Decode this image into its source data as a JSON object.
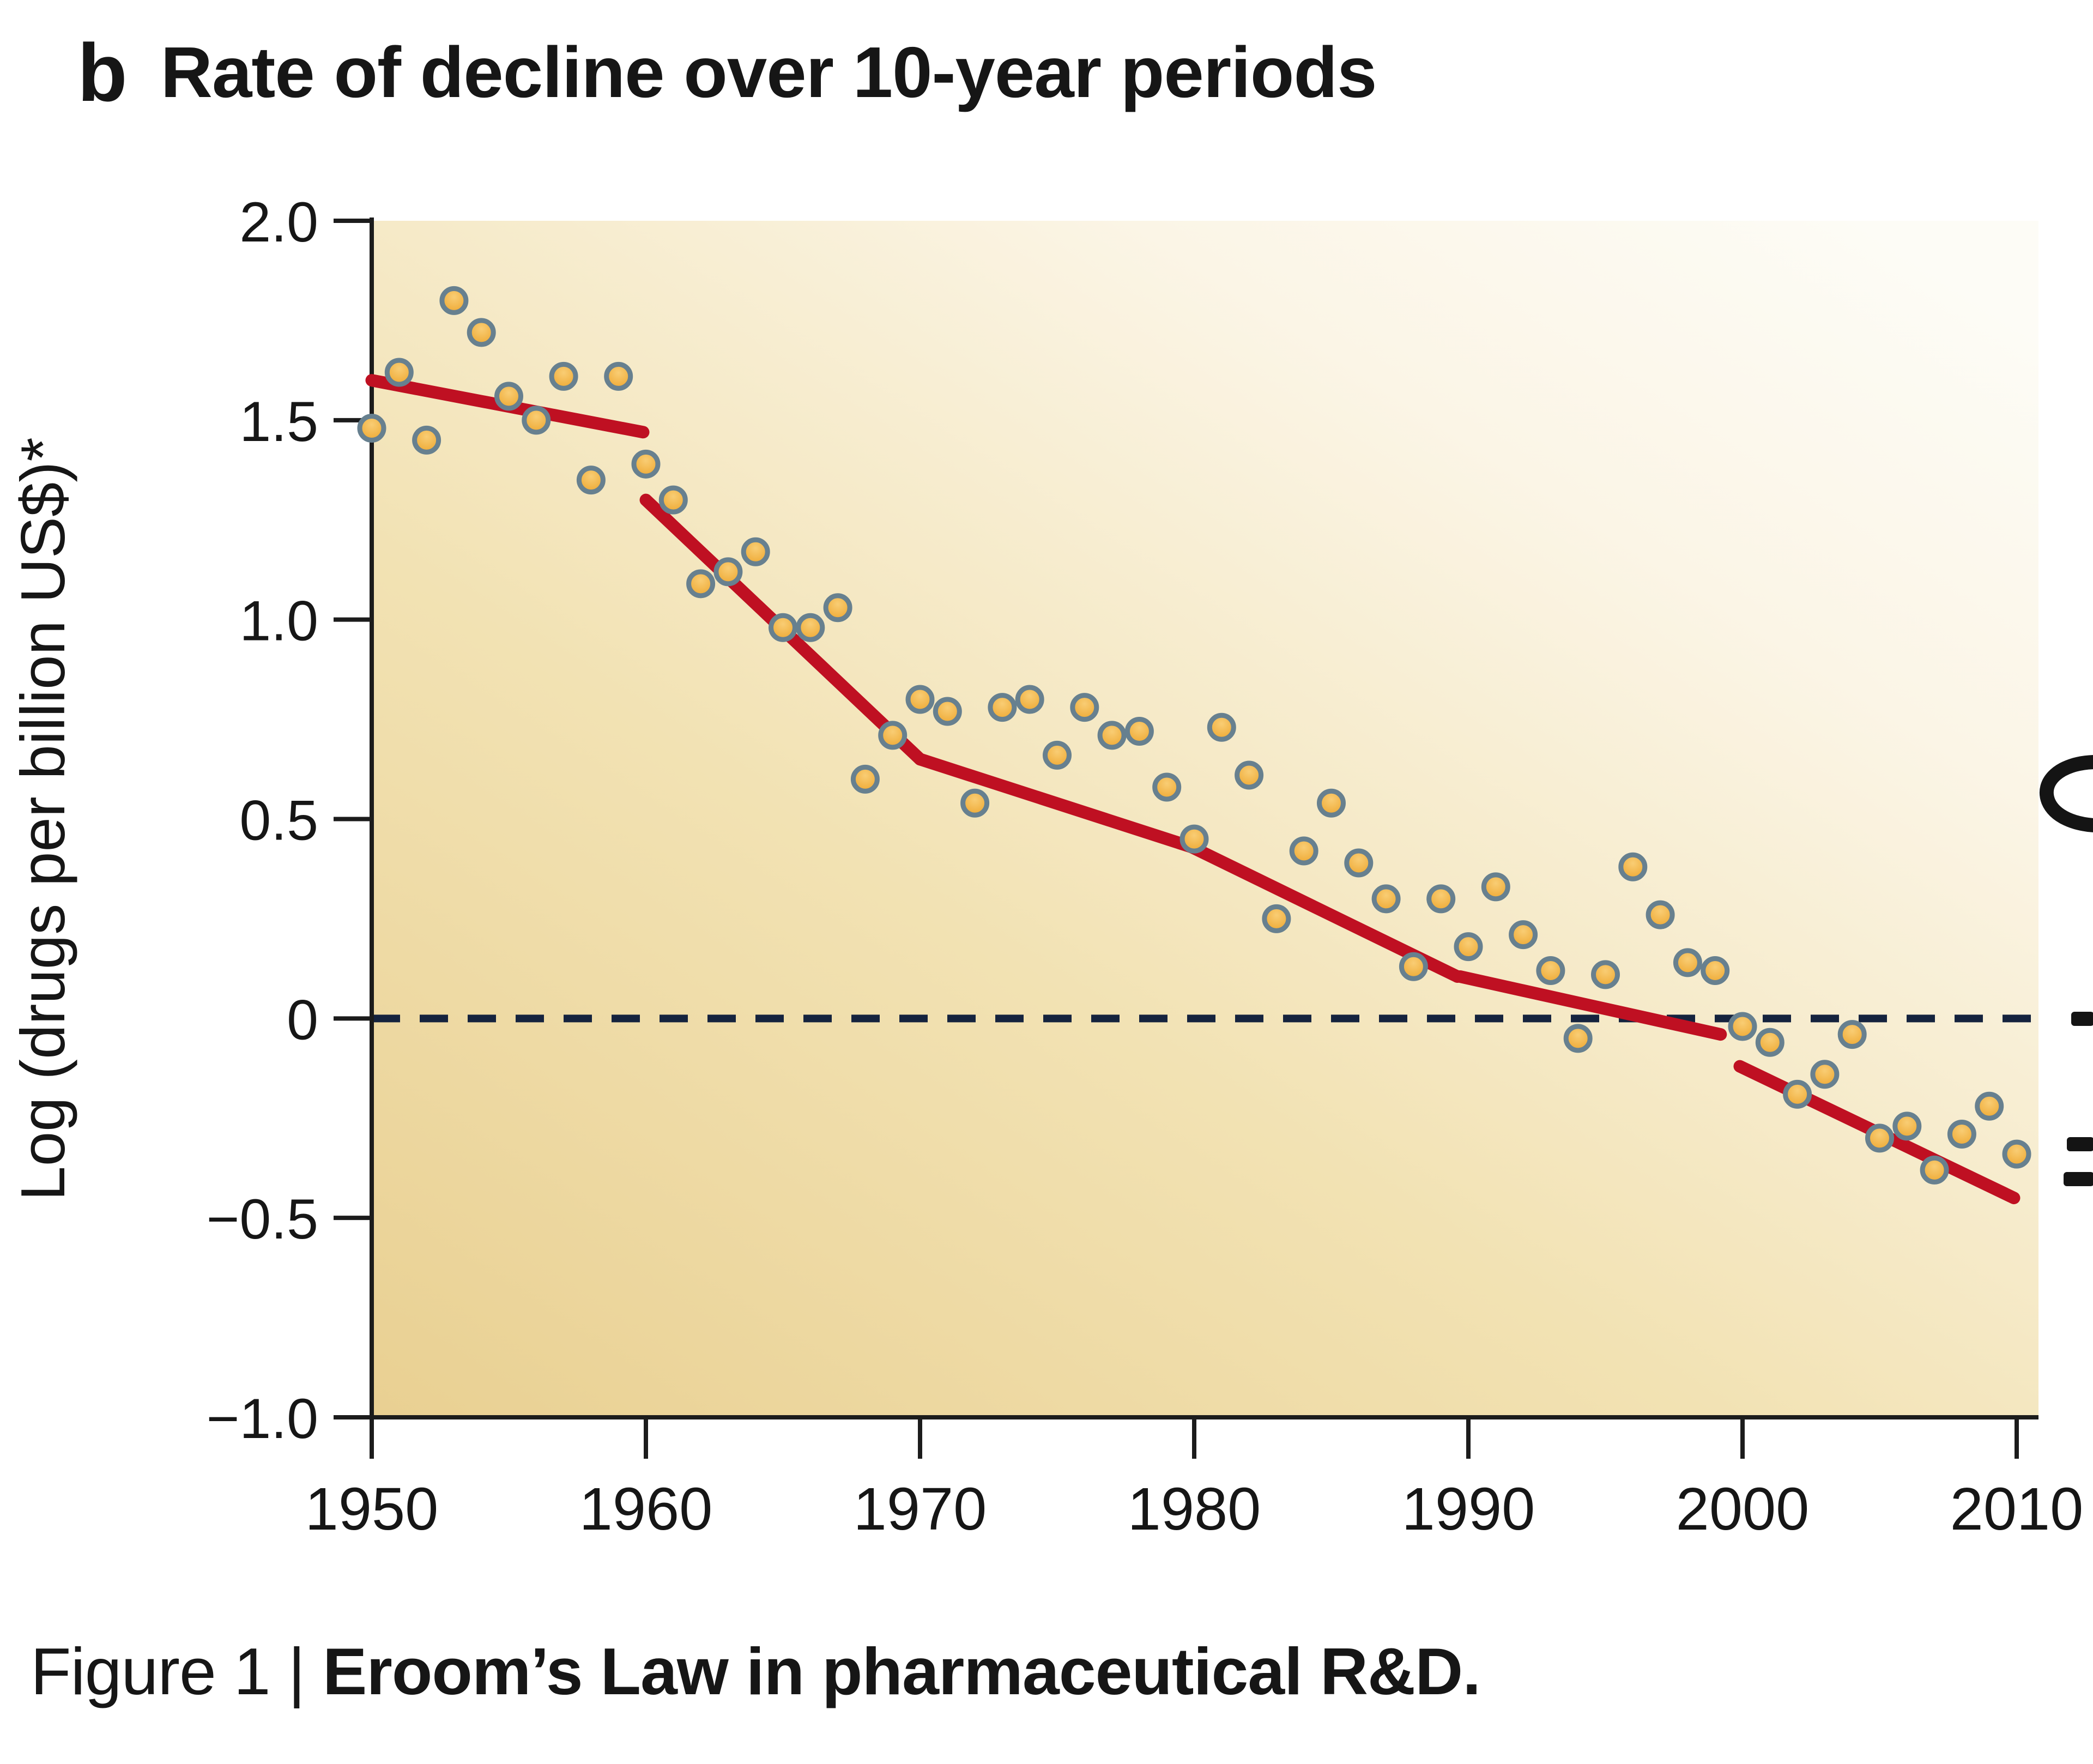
{
  "page": {
    "panel_label": "b",
    "panel_title": "Rate of decline over 10-year periods",
    "caption": {
      "prefix": "Figure 1 | ",
      "bold": "Eroom’s Law in pharmaceutical R&D."
    }
  },
  "chart_data": {
    "type": "scatter",
    "title": "Rate of decline over 10-year periods",
    "xlabel": "",
    "ylabel": "Log (drugs per billion US$)*",
    "xlim": [
      1950,
      2010
    ],
    "ylim": [
      -1.0,
      2.0
    ],
    "x_ticks": [
      1950,
      1960,
      1970,
      1980,
      1990,
      2000,
      2010
    ],
    "x_tick_labels": [
      "1950",
      "1960",
      "1970",
      "1980",
      "1990",
      "2000",
      "2010"
    ],
    "y_ticks": [
      2.0,
      1.5,
      1.0,
      0.5,
      0,
      -0.5,
      -1.0
    ],
    "y_tick_labels": [
      "2.0",
      "1.5",
      "1.0",
      "0.5",
      "0",
      "−0.5",
      "−1.0"
    ],
    "grid": false,
    "legend": null,
    "reference_line": {
      "y": 0,
      "style": "dashed"
    },
    "series": [
      {
        "name": "drugs-per-billion-usd-log-annual",
        "type": "scatter",
        "x": [
          1950,
          1951,
          1952,
          1953,
          1954,
          1955,
          1956,
          1957,
          1958,
          1959,
          1960,
          1961,
          1962,
          1963,
          1964,
          1965,
          1966,
          1967,
          1968,
          1969,
          1970,
          1971,
          1972,
          1973,
          1974,
          1975,
          1976,
          1977,
          1978,
          1979,
          1980,
          1981,
          1982,
          1983,
          1984,
          1985,
          1986,
          1987,
          1988,
          1989,
          1990,
          1991,
          1992,
          1993,
          1994,
          1995,
          1996,
          1997,
          1998,
          1999,
          2000,
          2001,
          2002,
          2003,
          2004,
          2005,
          2006,
          2007,
          2008,
          2009,
          2010
        ],
        "y": [
          1.48,
          1.62,
          1.45,
          1.8,
          1.72,
          1.56,
          1.5,
          1.61,
          1.35,
          1.61,
          1.39,
          1.3,
          1.09,
          1.12,
          1.17,
          0.98,
          0.98,
          1.03,
          0.6,
          0.71,
          0.8,
          0.77,
          0.54,
          0.78,
          0.8,
          0.66,
          0.78,
          0.71,
          0.72,
          0.58,
          0.45,
          0.73,
          0.61,
          0.25,
          0.42,
          0.54,
          0.39,
          0.3,
          0.13,
          0.3,
          0.18,
          0.33,
          0.21,
          0.12,
          -0.05,
          0.11,
          0.38,
          0.26,
          0.14,
          0.12,
          -0.02,
          -0.06,
          -0.19,
          -0.14,
          -0.04,
          -0.3,
          -0.27,
          -0.38,
          -0.29,
          -0.22,
          -0.34
        ]
      },
      {
        "name": "ten-year-trend-segments",
        "type": "line_segments",
        "segments": [
          [
            [
              1950.0,
              1.6
            ],
            [
              1959.9,
              1.47
            ]
          ],
          [
            [
              1960.0,
              1.3
            ],
            [
              1970.0,
              0.65
            ]
          ],
          [
            [
              1970.0,
              0.65
            ],
            [
              1979.9,
              0.43
            ]
          ],
          [
            [
              1979.9,
              0.43
            ],
            [
              1989.6,
              0.105
            ]
          ],
          [
            [
              1989.7,
              0.105
            ],
            [
              1999.2,
              -0.04
            ]
          ],
          [
            [
              1999.9,
              -0.12
            ],
            [
              2009.9,
              -0.45
            ]
          ]
        ]
      }
    ],
    "colors": {
      "plot_bg_gradient": [
        "#e9d092",
        "#f2e2b3",
        "#fbf5e6",
        "#fdfcf6"
      ],
      "point_fill": "#eda52c",
      "point_fill_light": "#f9cd74",
      "point_ring": "#67808f",
      "trend_line": "#bf1022",
      "zero_line": "#15233e",
      "axis": "#1c1c1c",
      "text": "#161616"
    }
  }
}
